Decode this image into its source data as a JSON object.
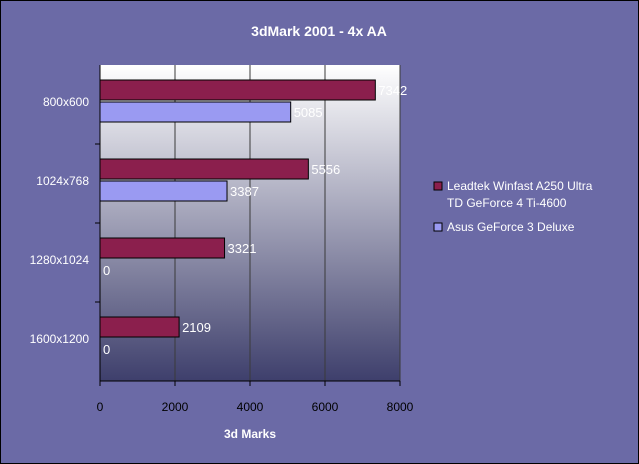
{
  "chart_data": {
    "type": "bar",
    "orientation": "horizontal",
    "title": "3dMark 2001 - 4x AA",
    "xlabel": "3d Marks",
    "ylabel": "",
    "xlim": [
      0,
      8000
    ],
    "xticks": [
      "0",
      "2000",
      "4000",
      "6000",
      "8000"
    ],
    "categories": [
      "800x600",
      "1024x768",
      "1280x1024",
      "1600x1200"
    ],
    "series": [
      {
        "name": "Leadtek Winfast A250 Ultra TD GeForce 4 Ti-4600",
        "legend_lines": [
          "Leadtek Winfast A250 Ultra",
          "TD GeForce 4 Ti-4600"
        ],
        "color": "#8b1f4d",
        "values": [
          7342,
          5556,
          3321,
          2109
        ]
      },
      {
        "name": "Asus GeForce 3 Deluxe",
        "legend_lines": [
          "Asus GeForce 3 Deluxe"
        ],
        "color": "#9a9af2",
        "values": [
          5085,
          3387,
          0,
          0
        ]
      }
    ],
    "grid": true,
    "legend_position": "right"
  }
}
